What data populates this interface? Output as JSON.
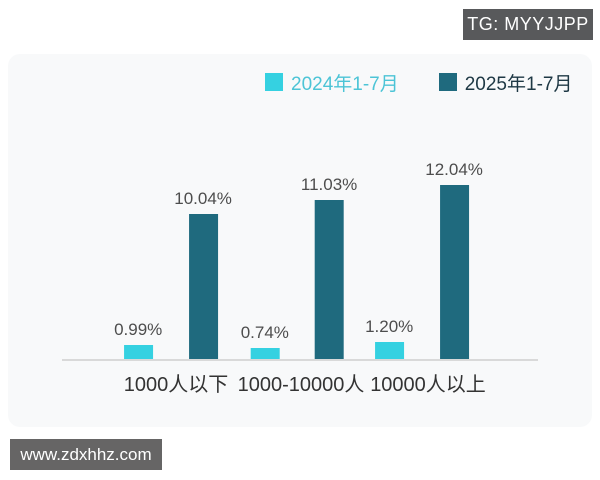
{
  "page": {
    "tg_badge": "TG: MYYJJPP",
    "watermark": "www.zdxhhz.com"
  },
  "colors": {
    "series_2024": "#35d1e1",
    "series_2025": "#1f6a7e",
    "legend_text_2024": "#4cc4d6",
    "legend_text_2025": "#1e3844",
    "value_label": "#4d4d4d",
    "category_label": "#333333",
    "axis_line": "#d9d9d9",
    "badge_bg": "#58595b",
    "card_bg": "#f8f9fa"
  },
  "chart_data": {
    "type": "bar",
    "title": "",
    "xlabel": "",
    "ylabel": "",
    "categories": [
      "1000人以下",
      "1000-10000人",
      "10000人以上"
    ],
    "series": [
      {
        "name": "2024年1-7月",
        "values": [
          0.99,
          0.74,
          1.2
        ],
        "labels": [
          "0.99%",
          "0.74%",
          "1.20%"
        ],
        "color": "#35d1e1"
      },
      {
        "name": "2025年1-7月",
        "values": [
          10.04,
          11.03,
          12.04
        ],
        "labels": [
          "10.04%",
          "11.03%",
          "12.04%"
        ],
        "color": "#1f6a7e"
      }
    ],
    "ylim": [
      0,
      14.6
    ],
    "grid": false,
    "y_axis_visible": false,
    "legend_position": "top",
    "value_labels_shown": true
  },
  "legend": [
    {
      "label": "2024年1-7月",
      "swatch_color": "#35d1e1",
      "text_color": "#4cc4d6"
    },
    {
      "label": "2025年1-7月",
      "swatch_color": "#1f6a7e",
      "text_color": "#1e3844"
    }
  ]
}
